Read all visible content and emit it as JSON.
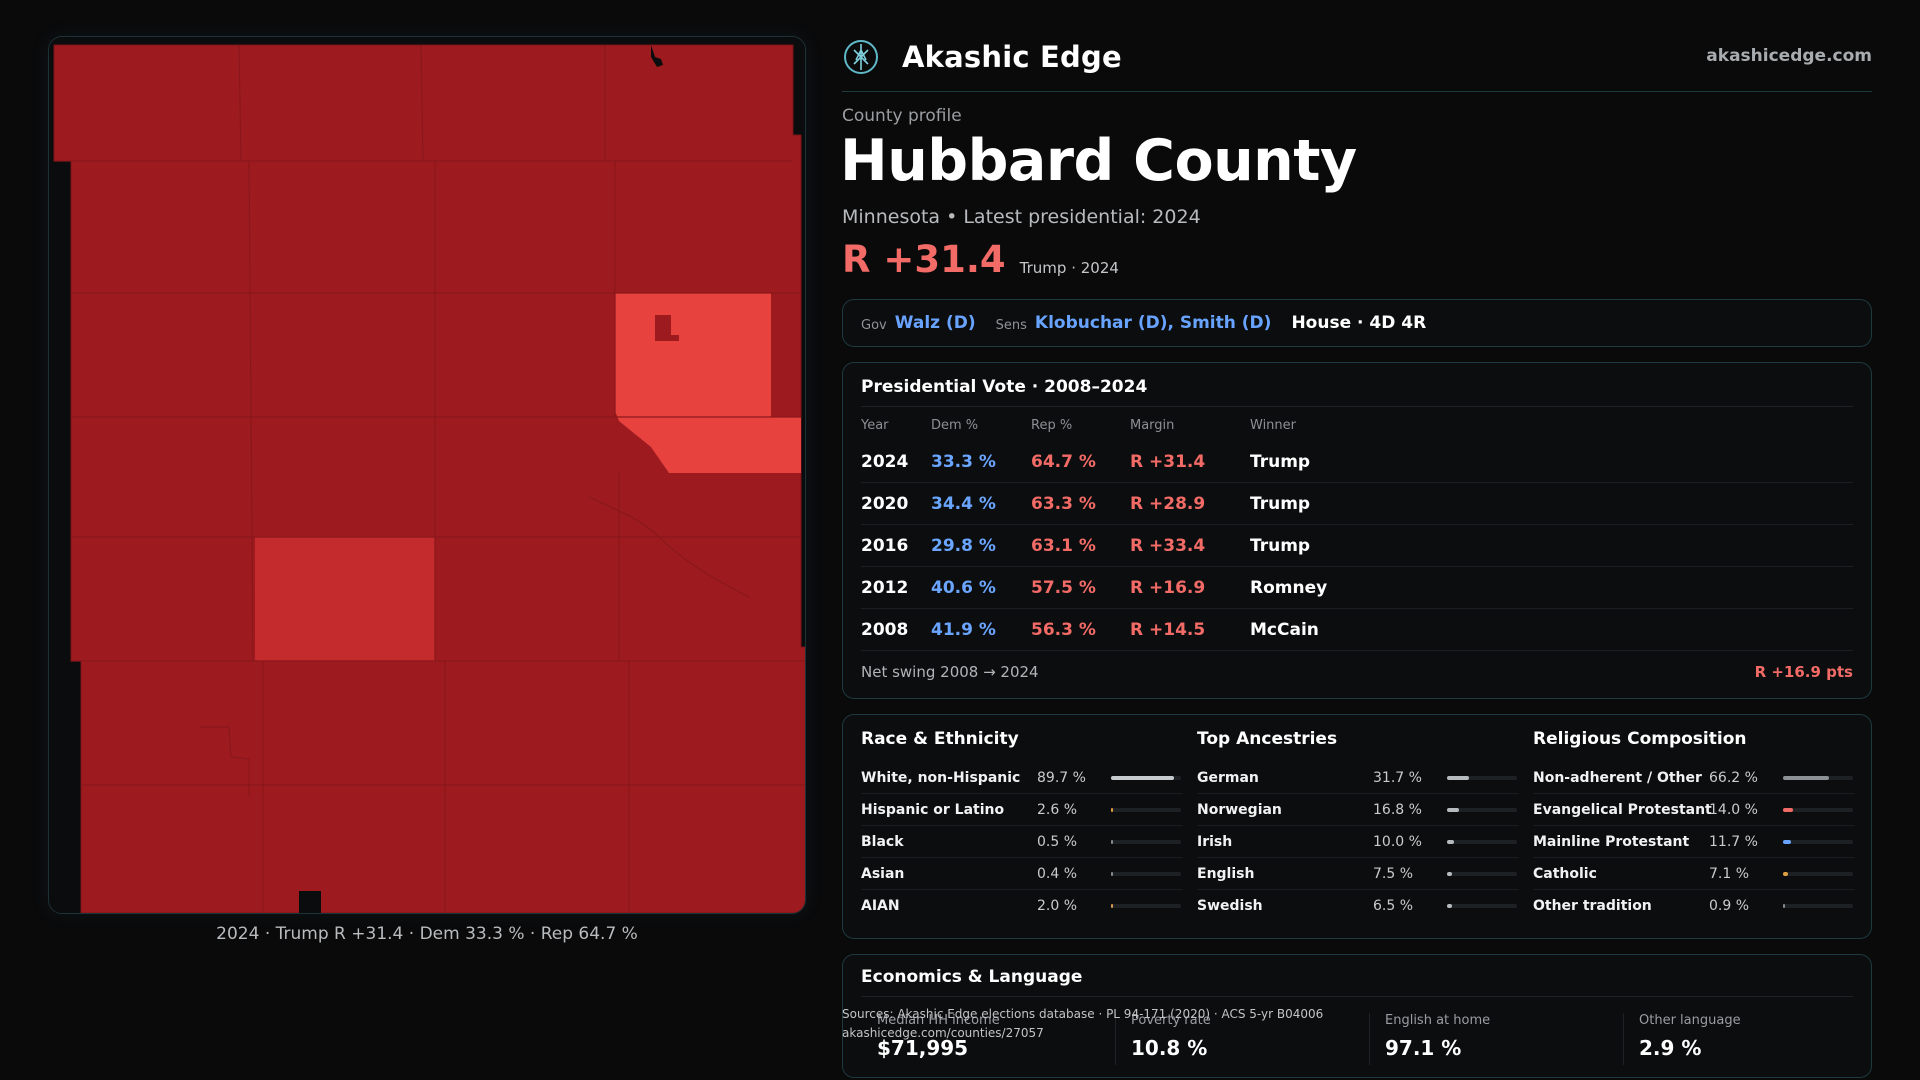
{
  "brand": {
    "name": "Akashic Edge",
    "url": "akashicedge.com",
    "logo_icon": "compass-tree-logo-icon"
  },
  "profile": {
    "kicker": "County profile",
    "title": "Hubbard County",
    "subtitle": "Minnesota • Latest presidential: 2024",
    "margin": "R +31.4",
    "margin_note": "Trump · 2024"
  },
  "officials": {
    "gov_label": "Gov",
    "gov_value": "Walz (D)",
    "sen_label": "Sens",
    "sen_value": "Klobuchar (D), Smith (D)",
    "house": "House · 4D 4R"
  },
  "presidential": {
    "title": "Presidential Vote · 2008–2024",
    "headers": [
      "Year",
      "Dem %",
      "Rep %",
      "Margin",
      "Winner"
    ],
    "rows": [
      {
        "year": "2024",
        "dem": "33.3 %",
        "rep": "64.7 %",
        "margin": "R +31.4",
        "winner": "Trump"
      },
      {
        "year": "2020",
        "dem": "34.4 %",
        "rep": "63.3 %",
        "margin": "R +28.9",
        "winner": "Trump"
      },
      {
        "year": "2016",
        "dem": "29.8 %",
        "rep": "63.1 %",
        "margin": "R +33.4",
        "winner": "Trump"
      },
      {
        "year": "2012",
        "dem": "40.6 %",
        "rep": "57.5 %",
        "margin": "R +16.9",
        "winner": "Romney"
      },
      {
        "year": "2008",
        "dem": "41.9 %",
        "rep": "56.3 %",
        "margin": "R +14.5",
        "winner": "McCain"
      }
    ],
    "swing_label": "Net swing 2008 → 2024",
    "swing_value": "R +16.9 pts"
  },
  "race": {
    "title": "Race & Ethnicity",
    "rows": [
      {
        "name": "White, non-Hispanic",
        "pct": "89.7 %",
        "share": 0.897,
        "color": "#c8cbce"
      },
      {
        "name": "Hispanic or Latino",
        "pct": "2.6 %",
        "share": 0.026,
        "color": "#e0a040"
      },
      {
        "name": "Black",
        "pct": "0.5 %",
        "share": 0.005,
        "color": "#8a8d90"
      },
      {
        "name": "Asian",
        "pct": "0.4 %",
        "share": 0.004,
        "color": "#8a8d90"
      },
      {
        "name": "AIAN",
        "pct": "2.0 %",
        "share": 0.02,
        "color": "#d89a50"
      }
    ]
  },
  "ancestry": {
    "title": "Top Ancestries",
    "rows": [
      {
        "name": "German",
        "pct": "31.7 %",
        "share": 0.317,
        "color": "#b8bbbe"
      },
      {
        "name": "Norwegian",
        "pct": "16.8 %",
        "share": 0.168,
        "color": "#b8bbbe"
      },
      {
        "name": "Irish",
        "pct": "10.0 %",
        "share": 0.1,
        "color": "#b8bbbe"
      },
      {
        "name": "English",
        "pct": "7.5 %",
        "share": 0.075,
        "color": "#b8bbbe"
      },
      {
        "name": "Swedish",
        "pct": "6.5 %",
        "share": 0.065,
        "color": "#b8bbbe"
      }
    ]
  },
  "religion": {
    "title": "Religious Composition",
    "rows": [
      {
        "name": "Non-adherent / Other",
        "pct": "66.2 %",
        "share": 0.662,
        "color": "#8d9195"
      },
      {
        "name": "Evangelical Protestant",
        "pct": "14.0 %",
        "share": 0.14,
        "color": "#f26b66"
      },
      {
        "name": "Mainline Protestant",
        "pct": "11.7 %",
        "share": 0.117,
        "color": "#67a3ff"
      },
      {
        "name": "Catholic",
        "pct": "7.1 %",
        "share": 0.071,
        "color": "#e0a040"
      },
      {
        "name": "Other tradition",
        "pct": "0.9 %",
        "share": 0.009,
        "color": "#8a8d90"
      }
    ]
  },
  "economics": {
    "title": "Economics & Language",
    "cells": [
      {
        "label": "Median HH income",
        "value": "$71,995"
      },
      {
        "label": "Poverty rate",
        "value": "10.8 %"
      },
      {
        "label": "English at home",
        "value": "97.1 %"
      },
      {
        "label": "Other language",
        "value": "2.9 %"
      }
    ]
  },
  "sources": {
    "line1": "Sources: Akashic Edge elections database · PL 94-171 (2020) · ACS 5-yr B04006",
    "line2": "akashicedge.com/counties/27057"
  },
  "map": {
    "caption": "2024 · Trump R +31.4 · Dem 33.3 % · Rep 64.7 %",
    "colors": {
      "strong_rep": "#9d1b1f",
      "mid_rep": "#c42b2c",
      "lean_rep": "#e8423f"
    }
  }
}
